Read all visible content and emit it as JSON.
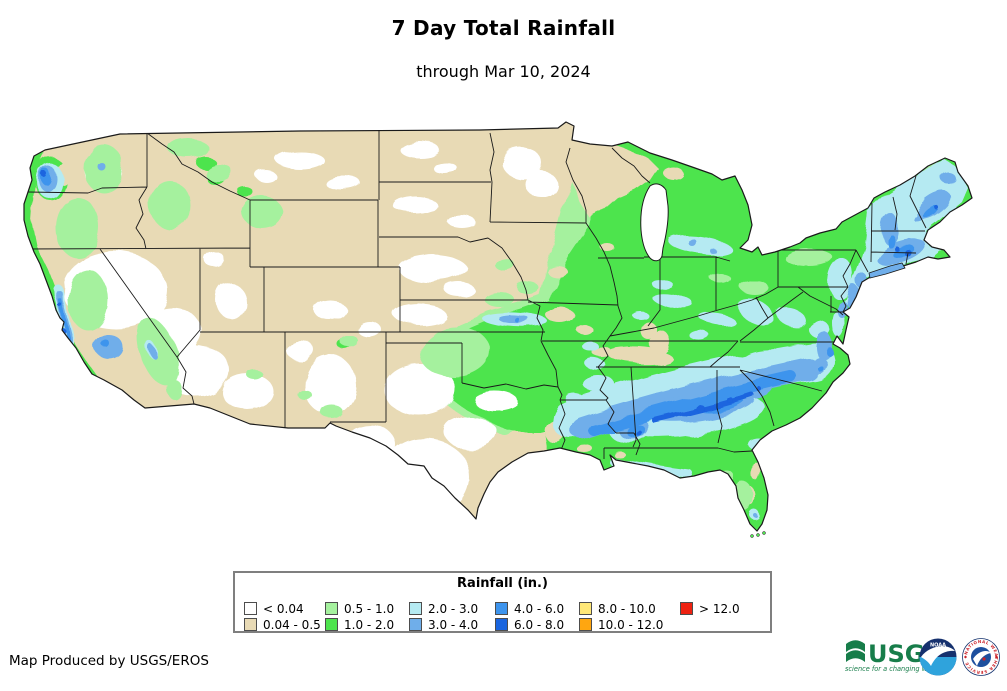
{
  "title": "7 Day Total Rainfall",
  "subtitle": "through Mar 10, 2024",
  "footer": {
    "credit": "Map Produced by USGS/EROS"
  },
  "palette": {
    "white": "#FFFFFF",
    "tan": "#E8DAB5",
    "green_light": "#A5F19E",
    "green": "#4EE44E",
    "cyan": "#B5EAF2",
    "blue_light": "#6FAEEA",
    "blue_med": "#3D94ED",
    "blue_dark": "#1A65DF",
    "yellow": "#FFE878",
    "orange": "#FFA610",
    "red": "#EE2211"
  },
  "legend": {
    "title": "Rainfall (in.)",
    "items": [
      {
        "label": "< 0.04",
        "key": "white"
      },
      {
        "label": "0.04 - 0.5",
        "key": "tan"
      },
      {
        "label": "0.5 - 1.0",
        "key": "green_light"
      },
      {
        "label": "1.0 - 2.0",
        "key": "green"
      },
      {
        "label": "2.0 - 3.0",
        "key": "cyan"
      },
      {
        "label": "3.0 - 4.0",
        "key": "blue_light"
      },
      {
        "label": "4.0 - 6.0",
        "key": "blue_med"
      },
      {
        "label": "6.0 - 8.0",
        "key": "blue_dark"
      },
      {
        "label": "8.0 - 10.0",
        "key": "yellow"
      },
      {
        "label": "10.0 - 12.0",
        "key": "orange"
      },
      {
        "label": "> 12.0",
        "key": "red"
      }
    ]
  },
  "logos": {
    "usgs": {
      "acronym": "USGS",
      "tagline": "science for a changing world"
    },
    "noaa": {
      "acronym": "NOAA"
    },
    "nws": {
      "label": "NATIONAL WEATHER SERVICE"
    }
  }
}
